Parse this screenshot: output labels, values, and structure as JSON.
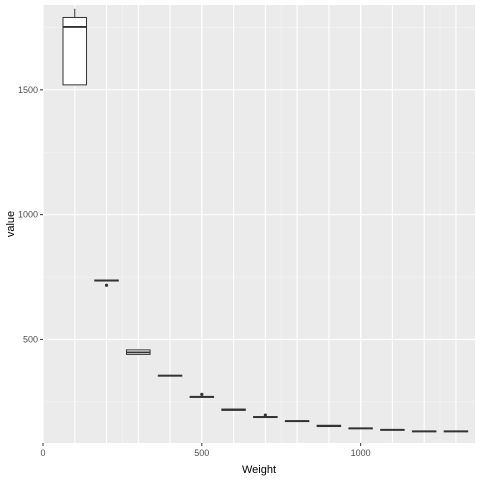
{
  "chart_data": {
    "type": "boxplot",
    "title": "",
    "xlabel": "Weight",
    "ylabel": "value",
    "xlim": [
      0,
      1360
    ],
    "ylim": [
      1520,
      1840
    ],
    "ylim_data": [
      85,
      1840
    ],
    "x_ticks": [
      0,
      500,
      1000
    ],
    "y_ticks": [
      500,
      1000,
      1500
    ],
    "grid": true,
    "legend": "none",
    "colors": {
      "panel": "#ebebeb",
      "grid_major": "#ffffff",
      "grid_minor": "#f5f5f5",
      "box_fill": "#ffffff",
      "box_line": "#333333",
      "tick_text": "#4d4d4d"
    },
    "boxes": [
      {
        "x": 100,
        "min": 1520,
        "q1": 1520,
        "median": 1752,
        "q3": 1790,
        "max": 1825,
        "outliers": []
      },
      {
        "x": 200,
        "min": 733,
        "q1": 734,
        "median": 736,
        "q3": 738,
        "max": 739,
        "outliers": [
          717
        ]
      },
      {
        "x": 300,
        "min": 438,
        "q1": 440,
        "median": 448,
        "q3": 458,
        "max": 460,
        "outliers": []
      },
      {
        "x": 400,
        "min": 353,
        "q1": 354,
        "median": 355,
        "q3": 356,
        "max": 357,
        "outliers": []
      },
      {
        "x": 500,
        "min": 268,
        "q1": 269,
        "median": 270,
        "q3": 271,
        "max": 272,
        "outliers": [
          280
        ]
      },
      {
        "x": 600,
        "min": 215,
        "q1": 216,
        "median": 218,
        "q3": 221,
        "max": 222,
        "outliers": []
      },
      {
        "x": 700,
        "min": 186,
        "q1": 187,
        "median": 189,
        "q3": 191,
        "max": 192,
        "outliers": [
          197
        ]
      },
      {
        "x": 800,
        "min": 172,
        "q1": 172,
        "median": 173,
        "q3": 174,
        "max": 174,
        "outliers": []
      },
      {
        "x": 900,
        "min": 150,
        "q1": 151,
        "median": 153,
        "q3": 156,
        "max": 157,
        "outliers": []
      },
      {
        "x": 1000,
        "min": 143,
        "q1": 143,
        "median": 144,
        "q3": 145,
        "max": 145,
        "outliers": []
      },
      {
        "x": 1100,
        "min": 137,
        "q1": 137,
        "median": 138,
        "q3": 139,
        "max": 139,
        "outliers": []
      },
      {
        "x": 1200,
        "min": 131,
        "q1": 131,
        "median": 132,
        "q3": 133,
        "max": 133,
        "outliers": []
      },
      {
        "x": 1300,
        "min": 131,
        "q1": 131,
        "median": 132,
        "q3": 133,
        "max": 133,
        "outliers": []
      }
    ]
  }
}
